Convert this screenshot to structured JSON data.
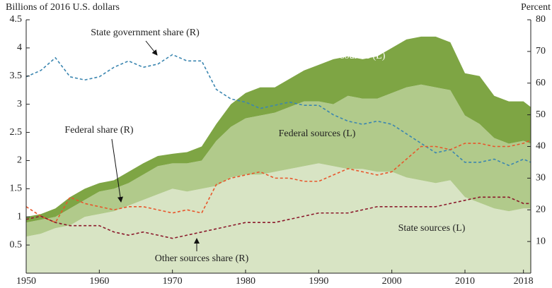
{
  "chart_data": {
    "type": "stacked_area_line",
    "y_label": "Billions of 2016 U.S. dollars",
    "y2_label": "Percent",
    "x": [
      1950,
      1952,
      1954,
      1956,
      1958,
      1960,
      1962,
      1964,
      1966,
      1968,
      1970,
      1972,
      1974,
      1976,
      1978,
      1980,
      1982,
      1984,
      1986,
      1988,
      1990,
      1992,
      1994,
      1996,
      1998,
      2000,
      2002,
      2004,
      2006,
      2008,
      2010,
      2012,
      2014,
      2016,
      2018,
      2019
    ],
    "xlim": [
      1950,
      2019
    ],
    "xticks": [
      1950,
      1960,
      1970,
      1980,
      1990,
      2000,
      2010,
      2018
    ],
    "ylim": [
      0,
      4.5
    ],
    "yticks": [
      0.5,
      1.0,
      1.5,
      2.0,
      2.5,
      3.0,
      3.5,
      4.0,
      4.5
    ],
    "y2lim": [
      0,
      80
    ],
    "y2ticks": [
      10,
      20,
      30,
      40,
      50,
      60,
      70,
      80
    ],
    "series": [
      {
        "name": "State sources (L)",
        "kind": "area",
        "color": "#d8e4c4",
        "values": [
          0.65,
          0.7,
          0.8,
          0.85,
          1.0,
          1.05,
          1.1,
          1.2,
          1.3,
          1.4,
          1.5,
          1.45,
          1.5,
          1.55,
          1.7,
          1.75,
          1.75,
          1.8,
          1.85,
          1.9,
          1.95,
          1.9,
          1.85,
          1.85,
          1.8,
          1.8,
          1.7,
          1.65,
          1.6,
          1.65,
          1.35,
          1.25,
          1.15,
          1.1,
          1.15,
          1.15
        ]
      },
      {
        "name": "Federal sources (L)",
        "kind": "area",
        "color": "#b1ca8b",
        "values": [
          0.25,
          0.25,
          0.2,
          0.3,
          0.3,
          0.4,
          0.4,
          0.4,
          0.45,
          0.5,
          0.45,
          0.5,
          0.5,
          0.8,
          0.9,
          1.0,
          1.05,
          1.05,
          1.1,
          1.15,
          1.1,
          1.1,
          1.3,
          1.25,
          1.3,
          1.4,
          1.6,
          1.7,
          1.7,
          1.6,
          1.45,
          1.4,
          1.25,
          1.2,
          1.2,
          1.15
        ]
      },
      {
        "name": "Other sources (L)",
        "kind": "area",
        "color": "#7ea544",
        "values": [
          0.1,
          0.1,
          0.15,
          0.2,
          0.2,
          0.15,
          0.15,
          0.2,
          0.2,
          0.18,
          0.17,
          0.2,
          0.25,
          0.3,
          0.4,
          0.45,
          0.5,
          0.45,
          0.5,
          0.55,
          0.65,
          0.8,
          0.7,
          0.7,
          0.75,
          0.8,
          0.85,
          0.85,
          0.9,
          0.85,
          0.75,
          0.85,
          0.75,
          0.75,
          0.7,
          0.65
        ]
      },
      {
        "name": "State government share (R)",
        "kind": "line",
        "axis": "y2",
        "color": "#3b86b0",
        "values": [
          62,
          64,
          68,
          62,
          61,
          62,
          65,
          67,
          65,
          66,
          69,
          67,
          67,
          58,
          55,
          54,
          52,
          53,
          54,
          53,
          53,
          50,
          48,
          47,
          48,
          47,
          44,
          41,
          38,
          39,
          35,
          35,
          36,
          34,
          36,
          35
        ]
      },
      {
        "name": "Federal share (R)",
        "kind": "line",
        "axis": "y2",
        "color": "#e8562b",
        "values": [
          21,
          18,
          16,
          24,
          22,
          21,
          20,
          21,
          21,
          20,
          19,
          20,
          19,
          28,
          30,
          31,
          32,
          30,
          30,
          29,
          29,
          31,
          33,
          32,
          31,
          32,
          36,
          40,
          40,
          39,
          41,
          41,
          40,
          40,
          41,
          42
        ]
      },
      {
        "name": "Other sources share (R)",
        "kind": "line",
        "axis": "y2",
        "color": "#8b1a2c",
        "values": [
          17,
          18,
          16,
          15,
          15,
          15,
          13,
          12,
          13,
          12,
          11,
          12,
          13,
          14,
          15,
          16,
          16,
          16,
          17,
          18,
          19,
          19,
          19,
          20,
          21,
          21,
          21,
          21,
          21,
          22,
          23,
          24,
          24,
          24,
          22,
          22
        ]
      }
    ]
  }
}
